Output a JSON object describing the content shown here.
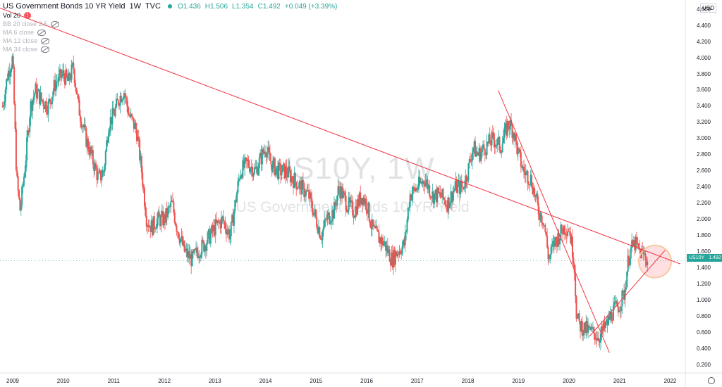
{
  "header": {
    "symbol": "US Government Bonds 10 YR Yield",
    "interval": "1W",
    "source": "TVC",
    "open": "O1.436",
    "high": "H1.506",
    "low": "L1.354",
    "close": "C1.492",
    "change": "+0.049 (+3.39%)"
  },
  "indicators": [
    {
      "label": "Vol 20",
      "icon": "warning-icon"
    },
    {
      "label": "BB 20 close 2.5",
      "icon": "hidden-eye-icon"
    },
    {
      "label": "MA 6 close",
      "icon": "hidden-eye-icon"
    },
    {
      "label": "MA 12 close",
      "icon": "hidden-eye-icon"
    },
    {
      "label": "MA 34 close",
      "icon": "hidden-eye-icon"
    }
  ],
  "watermark": {
    "line1": "US10Y, 1W",
    "line2": "US Government Bonds 10 YR Yield"
  },
  "axis": {
    "currency": "USD",
    "y_ticks": [
      "4.600",
      "4.400",
      "4.200",
      "4.000",
      "3.800",
      "3.600",
      "3.400",
      "3.200",
      "3.000",
      "2.800",
      "2.600",
      "2.400",
      "2.200",
      "2.000",
      "1.800",
      "1.600",
      "1.400",
      "1.200",
      "1.000",
      "0.800",
      "0.600",
      "0.400",
      "0.200"
    ],
    "x_ticks": [
      "2009",
      "2010",
      "2011",
      "2012",
      "2013",
      "2014",
      "2015",
      "2016",
      "2017",
      "2018",
      "2019",
      "2020",
      "2021",
      "2022"
    ]
  },
  "price_label": {
    "ticker": "US10Y",
    "value": "1.492"
  },
  "colors": {
    "up": "#26a69a",
    "down": "#ef5350",
    "trendline": "#f23645",
    "highlight": "#f7c9a0"
  },
  "chart_data": {
    "type": "candlestick",
    "ylim": [
      0.1,
      4.72
    ],
    "xlim": [
      2008.75,
      2022.3
    ],
    "close_series": {
      "x": [
        2008.8,
        2008.9,
        2009.0,
        2009.08,
        2009.15,
        2009.25,
        2009.35,
        2009.45,
        2009.55,
        2009.7,
        2009.85,
        2010.0,
        2010.1,
        2010.2,
        2010.3,
        2010.45,
        2010.6,
        2010.7,
        2010.8,
        2010.9,
        2011.0,
        2011.1,
        2011.2,
        2011.3,
        2011.45,
        2011.55,
        2011.65,
        2011.75,
        2011.85,
        2012.0,
        2012.15,
        2012.25,
        2012.4,
        2012.55,
        2012.65,
        2012.8,
        2013.0,
        2013.15,
        2013.3,
        2013.4,
        2013.5,
        2013.65,
        2013.8,
        2014.0,
        2014.1,
        2014.25,
        2014.4,
        2014.55,
        2014.7,
        2014.85,
        2015.0,
        2015.1,
        2015.2,
        2015.35,
        2015.45,
        2015.6,
        2015.75,
        2015.9,
        2016.0,
        2016.1,
        2016.2,
        2016.35,
        2016.5,
        2016.6,
        2016.75,
        2016.85,
        2017.0,
        2017.15,
        2017.3,
        2017.45,
        2017.6,
        2017.75,
        2017.9,
        2018.0,
        2018.1,
        2018.2,
        2018.35,
        2018.5,
        2018.65,
        2018.8,
        2018.9,
        2019.0,
        2019.1,
        2019.25,
        2019.4,
        2019.5,
        2019.6,
        2019.7,
        2019.8,
        2019.9,
        2020.0,
        2020.1,
        2020.15,
        2020.2,
        2020.3,
        2020.45,
        2020.6,
        2020.75,
        2020.85,
        2021.0,
        2021.1,
        2021.15,
        2021.2,
        2021.3,
        2021.4,
        2021.5,
        2021.55
      ],
      "y": [
        3.4,
        3.8,
        4.0,
        2.5,
        2.1,
        2.7,
        3.4,
        3.6,
        3.5,
        3.4,
        3.7,
        3.8,
        3.7,
        3.9,
        3.4,
        3.0,
        2.7,
        2.5,
        2.6,
        3.2,
        3.3,
        3.5,
        3.6,
        3.3,
        3.1,
        2.6,
        2.0,
        1.9,
        2.0,
        2.0,
        2.2,
        1.9,
        1.6,
        1.5,
        1.6,
        1.7,
        1.9,
        2.0,
        1.8,
        2.2,
        2.6,
        2.7,
        2.6,
        2.9,
        2.7,
        2.6,
        2.6,
        2.5,
        2.4,
        2.3,
        2.0,
        1.8,
        2.0,
        2.1,
        2.4,
        2.2,
        2.1,
        2.3,
        2.2,
        1.9,
        1.8,
        1.7,
        1.5,
        1.6,
        1.7,
        2.3,
        2.4,
        2.5,
        2.3,
        2.3,
        2.2,
        2.4,
        2.4,
        2.6,
        2.9,
        2.8,
        2.9,
        3.0,
        2.9,
        3.2,
        3.1,
        2.8,
        2.6,
        2.5,
        2.1,
        2.0,
        1.5,
        1.7,
        1.8,
        1.9,
        1.9,
        1.5,
        0.8,
        0.7,
        0.65,
        0.6,
        0.55,
        0.7,
        0.85,
        0.95,
        1.1,
        1.4,
        1.6,
        1.7,
        1.6,
        1.55,
        1.49
      ]
    },
    "trendlines": [
      {
        "name": "long-term-resistance",
        "from": [
          2008.75,
          4.62
        ],
        "to": [
          2022.2,
          1.45
        ]
      },
      {
        "name": "steep-downtrend",
        "from": [
          2018.6,
          3.6
        ],
        "to": [
          2020.8,
          0.35
        ]
      },
      {
        "name": "recovery-uptrend",
        "from": [
          2020.4,
          0.55
        ],
        "to": [
          2021.9,
          1.62
        ]
      }
    ],
    "highlight_zone": {
      "x": 2021.7,
      "y": 1.48
    }
  }
}
